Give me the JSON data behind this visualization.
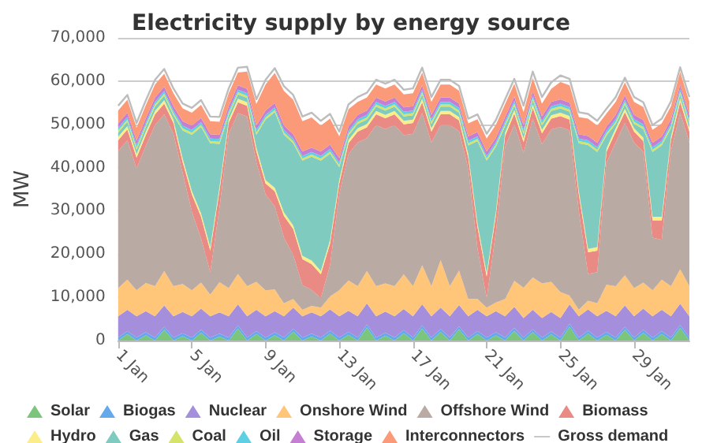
{
  "chart_data": {
    "type": "area",
    "title": "Electricity supply by energy source",
    "ylabel": "MW",
    "stacked": true,
    "grid": "y",
    "legend": "bottom",
    "xticks": [
      {
        "value": "--01-01",
        "label": "1 Jan"
      },
      {
        "value": "--01-05",
        "label": "5 Jan"
      },
      {
        "value": "--01-09",
        "label": "9 Jan"
      },
      {
        "value": "--01-13",
        "label": "13 Jan"
      },
      {
        "value": "--01-17",
        "label": "17 Jan"
      },
      {
        "value": "--01-21",
        "label": "21 Jan"
      },
      {
        "value": "--01-25",
        "label": "25 Jan"
      },
      {
        "value": "--01-29",
        "label": "29 Jan"
      }
    ],
    "xlim": [
      "--01-01",
      "--02-01"
    ],
    "ylim": [
      0,
      70000
    ],
    "yticks": [
      0,
      {
        "value": 10000,
        "label": "10,000"
      },
      {
        "value": 20000,
        "label": "20,000"
      },
      {
        "value": 30000,
        "label": "30,000"
      },
      {
        "value": 40000,
        "label": "40,000"
      },
      {
        "value": 50000,
        "label": "50,000"
      },
      {
        "value": 60000,
        "label": "60,000"
      },
      {
        "value": 70000,
        "label": "70,000"
      }
    ],
    "x": [
      "--01-01T00:00",
      "--01-01T12:00",
      "--01-02T00:00",
      "--01-02T12:00",
      "--01-03T00:00",
      "--01-03T12:00",
      "--01-04T00:00",
      "--01-04T12:00",
      "--01-05T00:00",
      "--01-05T12:00",
      "--01-06T00:00",
      "--01-06T12:00",
      "--01-07T00:00",
      "--01-07T12:00",
      "--01-08T00:00",
      "--01-08T12:00",
      "--01-09T00:00",
      "--01-09T12:00",
      "--01-10T00:00",
      "--01-10T12:00",
      "--01-11T00:00",
      "--01-11T12:00",
      "--01-12T00:00",
      "--01-12T12:00",
      "--01-13T00:00",
      "--01-13T12:00",
      "--01-14T00:00",
      "--01-14T12:00",
      "--01-15T00:00",
      "--01-15T12:00",
      "--01-16T00:00",
      "--01-16T12:00",
      "--01-17T00:00",
      "--01-17T12:00",
      "--01-18T00:00",
      "--01-18T12:00",
      "--01-19T00:00",
      "--01-19T12:00",
      "--01-20T00:00",
      "--01-20T12:00",
      "--01-21T00:00",
      "--01-21T12:00",
      "--01-22T00:00",
      "--01-22T12:00",
      "--01-23T00:00",
      "--01-23T12:00",
      "--01-24T00:00",
      "--01-24T12:00",
      "--01-25T00:00",
      "--01-25T12:00",
      "--01-26T00:00",
      "--01-26T12:00",
      "--01-27T00:00",
      "--01-27T12:00",
      "--01-28T00:00",
      "--01-28T12:00",
      "--01-29T00:00",
      "--01-29T12:00",
      "--01-30T00:00",
      "--01-30T12:00",
      "--01-31T00:00",
      "--01-31T12:00",
      "--02-01T00:00"
    ],
    "series": [
      {
        "name": "Solar",
        "color": "#7cc57c",
        "values": [
          0,
          1500,
          0,
          1200,
          0,
          2500,
          0,
          1000,
          0,
          1800,
          0,
          900,
          0,
          2800,
          0,
          1500,
          0,
          1200,
          0,
          2000,
          0,
          900,
          0,
          1600,
          0,
          1300,
          0,
          3000,
          0,
          1100,
          0,
          1700,
          0,
          2800,
          0,
          2000,
          0,
          2600,
          0,
          1500,
          0,
          1200,
          0,
          2200,
          0,
          1900,
          0,
          1400,
          0,
          3200,
          0,
          1600,
          0,
          1300,
          0,
          2500,
          0,
          1800,
          0,
          1500,
          0,
          2900,
          0
        ]
      },
      {
        "name": "Biogas",
        "color": "#64a9ec",
        "values": [
          700,
          700,
          700,
          700,
          700,
          700,
          700,
          700,
          700,
          700,
          700,
          700,
          700,
          700,
          700,
          700,
          700,
          700,
          700,
          700,
          700,
          700,
          700,
          700,
          700,
          700,
          700,
          700,
          700,
          700,
          700,
          700,
          700,
          700,
          700,
          700,
          700,
          700,
          700,
          700,
          700,
          700,
          700,
          700,
          700,
          700,
          700,
          700,
          700,
          700,
          700,
          700,
          700,
          700,
          700,
          700,
          700,
          700,
          700,
          700,
          700,
          700,
          700
        ]
      },
      {
        "name": "Nuclear",
        "color": "#a58fdc",
        "values": [
          4900,
          4900,
          4900,
          4900,
          4900,
          4900,
          4900,
          4900,
          4900,
          4900,
          4900,
          4900,
          4900,
          4900,
          4900,
          4900,
          4900,
          4900,
          4900,
          4900,
          4900,
          4900,
          4900,
          4900,
          4900,
          4900,
          4900,
          4900,
          4900,
          4900,
          4900,
          4900,
          4900,
          4900,
          4900,
          4900,
          4900,
          4900,
          4900,
          4900,
          4900,
          4900,
          4900,
          4900,
          4500,
          4500,
          4500,
          4500,
          4500,
          4500,
          4900,
          4900,
          4900,
          4900,
          4900,
          4900,
          4900,
          4900,
          4900,
          4900,
          4900,
          4900,
          4900
        ]
      },
      {
        "name": "Onshore Wind",
        "color": "#ffc578",
        "values": [
          6500,
          7000,
          6000,
          6500,
          7000,
          8000,
          7000,
          6500,
          6000,
          6000,
          5000,
          7000,
          6500,
          7000,
          7000,
          6500,
          6000,
          5000,
          3000,
          2000,
          1500,
          1500,
          2000,
          3000,
          6000,
          7000,
          7000,
          7500,
          7000,
          6500,
          7000,
          8000,
          7000,
          9000,
          7000,
          11000,
          7000,
          8000,
          4000,
          2500,
          2000,
          2000,
          4000,
          6000,
          7000,
          7500,
          8000,
          7000,
          6000,
          2000,
          1500,
          2000,
          3000,
          6000,
          7000,
          7000,
          6500,
          6000,
          6000,
          7000,
          7000,
          8000,
          7000
        ]
      },
      {
        "name": "Offshore Wind",
        "color": "#b9aaa3",
        "values": [
          31700,
          32200,
          28200,
          31700,
          37200,
          36200,
          35200,
          25700,
          18200,
          10200,
          5200,
          17200,
          35700,
          37200,
          39200,
          27700,
          22200,
          19200,
          15200,
          10200,
          5700,
          3700,
          2200,
          7200,
          22200,
          29200,
          33200,
          30700,
          37200,
          35700,
          37200,
          32200,
          35200,
          35200,
          33200,
          31200,
          37200,
          32200,
          30200,
          11700,
          2200,
          16200,
          35200,
          36200,
          31200,
          36700,
          32200,
          35200,
          38200,
          38200,
          22700,
          6200,
          7200,
          28200,
          33200,
          35200,
          33700,
          30200,
          12200,
          9200,
          31200,
          36200,
          33200
        ]
      },
      {
        "name": "Biomass",
        "color": "#e98a84",
        "values": [
          2500,
          2500,
          2500,
          2500,
          2500,
          2500,
          2500,
          2500,
          4000,
          5000,
          5000,
          4000,
          2500,
          2500,
          2500,
          2500,
          2500,
          3500,
          5000,
          6000,
          6000,
          6000,
          5500,
          5000,
          2500,
          2500,
          2500,
          2500,
          2500,
          2500,
          2500,
          2500,
          2500,
          2500,
          2500,
          2500,
          2500,
          2500,
          2500,
          5000,
          5000,
          4000,
          2500,
          2500,
          2500,
          2500,
          2500,
          2500,
          2500,
          2500,
          4000,
          5000,
          5000,
          2500,
          2500,
          2500,
          2500,
          2500,
          4000,
          4500,
          2500,
          2500,
          2500
        ]
      },
      {
        "name": "Hydro",
        "color": "#fbee8a",
        "values": [
          800,
          800,
          800,
          800,
          800,
          800,
          800,
          800,
          800,
          800,
          800,
          800,
          800,
          800,
          800,
          800,
          800,
          800,
          800,
          800,
          800,
          800,
          800,
          800,
          800,
          800,
          800,
          800,
          800,
          800,
          800,
          800,
          800,
          800,
          800,
          800,
          800,
          800,
          800,
          800,
          800,
          800,
          800,
          800,
          800,
          800,
          800,
          800,
          800,
          800,
          800,
          800,
          800,
          800,
          800,
          800,
          800,
          800,
          800,
          800,
          800,
          800,
          800
        ]
      },
      {
        "name": "Gas",
        "color": "#7fcbbf",
        "values": [
          1000,
          1000,
          1000,
          1000,
          1000,
          1000,
          1000,
          6500,
          13000,
          20000,
          24000,
          10000,
          1000,
          1000,
          1000,
          3000,
          14000,
          17500,
          18000,
          19000,
          22000,
          24000,
          25500,
          20000,
          3000,
          1000,
          1000,
          1000,
          1000,
          1000,
          1000,
          1000,
          1000,
          1000,
          1000,
          1000,
          1000,
          1000,
          2000,
          19000,
          26000,
          15000,
          1500,
          1000,
          1000,
          1000,
          1000,
          1000,
          1000,
          1000,
          11000,
          24000,
          22000,
          3000,
          1000,
          1000,
          1000,
          2000,
          15000,
          16500,
          2000,
          1000,
          1000
        ]
      },
      {
        "name": "Coal",
        "color": "#d5e36a",
        "values": [
          500,
          500,
          500,
          500,
          500,
          500,
          500,
          500,
          500,
          500,
          500,
          500,
          500,
          500,
          500,
          500,
          500,
          500,
          500,
          500,
          500,
          500,
          500,
          500,
          500,
          500,
          500,
          500,
          500,
          500,
          500,
          500,
          500,
          500,
          500,
          500,
          500,
          500,
          500,
          500,
          500,
          500,
          500,
          500,
          500,
          500,
          500,
          500,
          500,
          500,
          500,
          500,
          500,
          500,
          500,
          500,
          500,
          500,
          500,
          500,
          500,
          500,
          500
        ]
      },
      {
        "name": "Oil",
        "color": "#5fcfe3",
        "values": [
          600,
          600,
          600,
          600,
          600,
          600,
          600,
          600,
          600,
          600,
          600,
          600,
          600,
          600,
          600,
          600,
          600,
          600,
          600,
          600,
          600,
          600,
          600,
          600,
          600,
          600,
          600,
          600,
          600,
          600,
          600,
          600,
          600,
          600,
          600,
          600,
          600,
          600,
          600,
          600,
          600,
          600,
          600,
          600,
          600,
          600,
          600,
          600,
          600,
          600,
          600,
          600,
          600,
          600,
          600,
          600,
          600,
          600,
          600,
          600,
          600,
          600,
          600
        ]
      },
      {
        "name": "Storage",
        "color": "#c47fd3",
        "values": [
          1000,
          1000,
          1000,
          1000,
          1000,
          1000,
          1000,
          1000,
          1000,
          1000,
          1000,
          1000,
          1000,
          1000,
          1000,
          1000,
          1000,
          1000,
          1000,
          1000,
          1000,
          1000,
          1000,
          1000,
          1000,
          1000,
          1000,
          1000,
          1000,
          1000,
          1000,
          1000,
          1000,
          1000,
          1000,
          1000,
          1000,
          1000,
          1000,
          1000,
          1000,
          1000,
          1000,
          1000,
          1000,
          1000,
          1000,
          1000,
          1000,
          1000,
          1000,
          1000,
          1000,
          1000,
          1000,
          1000,
          1000,
          1000,
          1000,
          1000,
          1000,
          1000,
          1000
        ]
      },
      {
        "name": "Interconnectors",
        "color": "#fb9a78",
        "values": [
          3000,
          3000,
          3000,
          3000,
          3000,
          3000,
          3000,
          3000,
          3000,
          3000,
          3000,
          3000,
          3000,
          3000,
          4000,
          5000,
          6000,
          7000,
          8000,
          8000,
          7000,
          7000,
          6000,
          6000,
          5000,
          4000,
          3000,
          3000,
          3000,
          3000,
          3000,
          3000,
          3000,
          3000,
          3000,
          3000,
          3000,
          3000,
          3000,
          3000,
          3000,
          3000,
          3000,
          3000,
          3000,
          3000,
          3000,
          3000,
          4000,
          4000,
          4000,
          4000,
          4000,
          3000,
          3000,
          3000,
          3000,
          3000,
          3000,
          3000,
          3000,
          3000,
          3000
        ]
      },
      {
        "name": "Gross demand",
        "type": "line",
        "color": "#bdbdbd",
        "values": [
          54300,
          56800,
          50300,
          55500,
          60300,
          62800,
          58300,
          54800,
          53800,
          55600,
          51800,
          51700,
          58300,
          63100,
          63300,
          55800,
          60300,
          63000,
          58800,
          56800,
          51800,
          52700,
          50800,
          52400,
          48300,
          54600,
          56300,
          57300,
          60300,
          59400,
          60300,
          58000,
          58300,
          63100,
          56300,
          60300,
          60300,
          58900,
          51300,
          52300,
          47800,
          51000,
          55800,
          60500,
          54300,
          62200,
          56300,
          59700,
          61300,
          60500,
          52800,
          52400,
          50800,
          53600,
          56300,
          60800,
          56300,
          55100,
          49800,
          51300,
          55300,
          63200,
          56300
        ]
      }
    ]
  }
}
